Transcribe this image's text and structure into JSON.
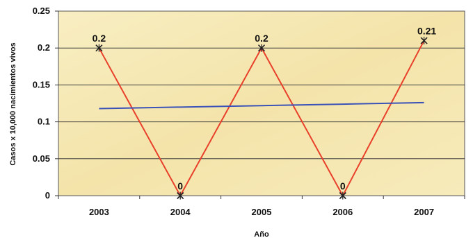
{
  "chart_data": {
    "type": "line",
    "categories": [
      "2003",
      "2004",
      "2005",
      "2006",
      "2007"
    ],
    "series": [
      {
        "values": [
          0.2,
          0,
          0.2,
          0,
          0.21
        ],
        "data_labels": [
          "0.2",
          "0",
          "0.2",
          "0",
          "0.21"
        ],
        "color": "#e8402a",
        "marker": "x"
      },
      {
        "kind": "trendline",
        "values": [
          0.118,
          0.12,
          0.122,
          0.124,
          0.126
        ],
        "color": "#3a52b8"
      }
    ],
    "xlabel": "Año",
    "ylabel": "Casos x 10,000 nacimientos vivos",
    "ylim": [
      0,
      0.25
    ],
    "yticks": [
      "0",
      "0.05",
      "0.1",
      "0.15",
      "0.2",
      "0.25"
    ],
    "grid": true,
    "legend": "none",
    "background_color": "#f6e9b4"
  }
}
